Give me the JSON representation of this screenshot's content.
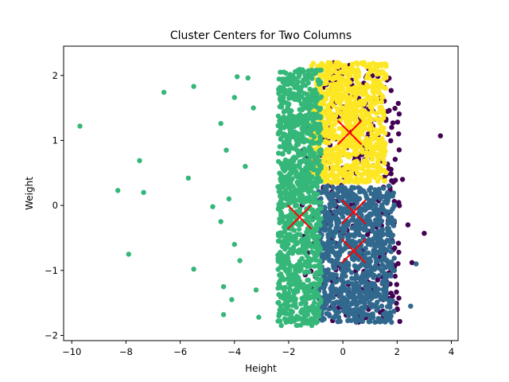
{
  "chart_data": {
    "type": "scatter",
    "title": "Cluster Centers for Two Columns",
    "xlabel": "Height",
    "ylabel": "Weight",
    "xlim": [
      -10.3,
      4.25
    ],
    "ylim": [
      -2.08,
      2.45
    ],
    "xticks": [
      -10,
      -8,
      -6,
      -4,
      -2,
      0,
      2,
      4
    ],
    "yticks": [
      -2,
      -1,
      0,
      1,
      2
    ],
    "grid": false,
    "legend": "none",
    "clusters": [
      {
        "color": "#440154",
        "region": {
          "x": [
            -1.5,
            2.1
          ],
          "y": [
            -1.8,
            2.2
          ]
        },
        "count": 380,
        "outliers": [
          [
            3.6,
            1.07
          ],
          [
            3.0,
            -0.43
          ],
          [
            2.55,
            -0.88
          ],
          [
            -0.3,
            2.18
          ],
          [
            1.8,
            1.2
          ],
          [
            2.2,
            0.4
          ],
          [
            2.4,
            -0.3
          ]
        ]
      },
      {
        "color": "#fde725",
        "region": {
          "x": [
            -1.2,
            1.6
          ],
          "y": [
            0.35,
            2.2
          ]
        },
        "count": 900,
        "outliers": []
      },
      {
        "color": "#31688e",
        "region": {
          "x": [
            -0.9,
            1.9
          ],
          "y": [
            -1.8,
            0.3
          ]
        },
        "count": 900,
        "outliers": [
          [
            2.7,
            -0.9
          ],
          [
            2.5,
            -1.55
          ]
        ]
      },
      {
        "color": "#35b779",
        "region": {
          "x": [
            -2.4,
            -0.8
          ],
          "y": [
            -1.85,
            2.1
          ]
        },
        "count": 1100,
        "outliers": [
          [
            -9.7,
            1.22
          ],
          [
            -8.3,
            0.23
          ],
          [
            -7.9,
            -0.75
          ],
          [
            -7.5,
            0.69
          ],
          [
            -7.35,
            0.2
          ],
          [
            -6.6,
            1.74
          ],
          [
            -5.7,
            0.42
          ],
          [
            -5.5,
            1.83
          ],
          [
            -5.5,
            -0.98
          ],
          [
            -4.8,
            -0.02
          ],
          [
            -4.5,
            -0.25
          ],
          [
            -4.5,
            1.26
          ],
          [
            -4.4,
            -1.25
          ],
          [
            -4.3,
            0.85
          ],
          [
            -4.2,
            0.1
          ],
          [
            -4.0,
            1.66
          ],
          [
            -3.9,
            1.98
          ],
          [
            -4.0,
            -0.6
          ],
          [
            -3.8,
            -0.85
          ],
          [
            -3.6,
            0.6
          ],
          [
            -3.5,
            1.96
          ],
          [
            -4.1,
            -1.45
          ],
          [
            -4.4,
            -1.68
          ],
          [
            -3.2,
            -1.3
          ],
          [
            -3.3,
            1.5
          ],
          [
            -3.1,
            -1.72
          ]
        ]
      }
    ],
    "centers": [
      {
        "x": 0.25,
        "y": 1.12
      },
      {
        "x": 0.4,
        "y": -0.1
      },
      {
        "x": -1.6,
        "y": -0.18
      },
      {
        "x": 0.4,
        "y": -0.7
      }
    ],
    "center_color": "#ff0000"
  }
}
